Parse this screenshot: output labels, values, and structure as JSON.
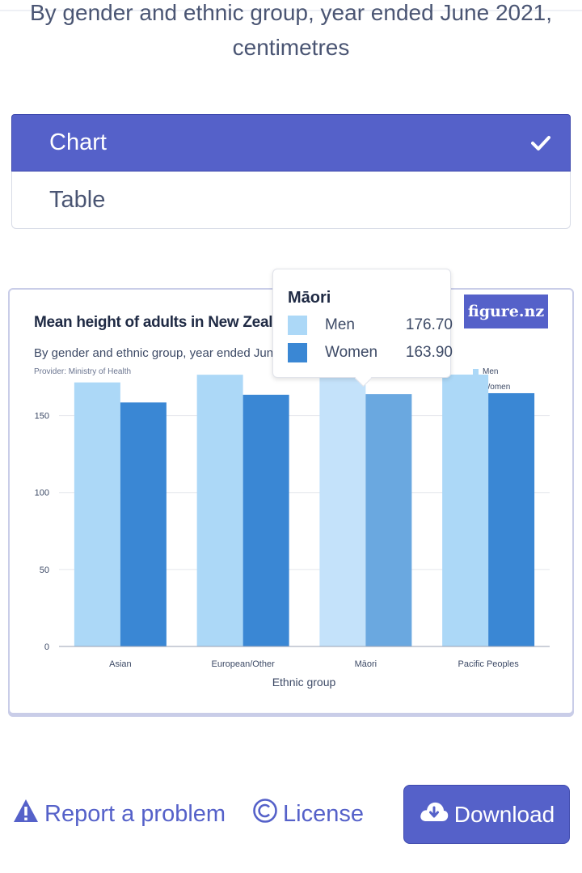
{
  "header": {
    "subtitle_line1": "By gender and ethnic group, year ended June 2021,",
    "subtitle_line2": "centimetres"
  },
  "view_toggle": {
    "options": [
      {
        "label": "Chart",
        "selected": true
      },
      {
        "label": "Table",
        "selected": false
      }
    ]
  },
  "chart_card": {
    "title": "Mean height of adults in New Zealand",
    "subtitle": "By gender and ethnic group, year ended June 20",
    "provider": "Provider: Ministry of Health",
    "logo": "figure.nz"
  },
  "tooltip": {
    "title": "Māori",
    "rows": [
      {
        "label": "Men",
        "value": "176.70"
      },
      {
        "label": "Women",
        "value": "163.90"
      }
    ]
  },
  "chart_data": {
    "type": "bar",
    "title": "Mean height of adults in New Zealand",
    "subtitle": "By gender and ethnic group, year ended June 2021, centimetres",
    "xlabel": "Ethnic group",
    "ylabel": "",
    "categories": [
      "Asian",
      "European/Other",
      "Māori",
      "Pacific Peoples"
    ],
    "series": [
      {
        "name": "Men",
        "values": [
          171.5,
          176.5,
          176.7,
          176.6
        ],
        "color": "#acd8f7"
      },
      {
        "name": "Women",
        "values": [
          158.5,
          163.5,
          163.9,
          164.5
        ],
        "color": "#3a87d4"
      }
    ],
    "yticks": [
      "0",
      "50",
      "100",
      "150"
    ],
    "ylim": [
      0,
      175
    ],
    "highlighted_category": "Māori",
    "grid": true,
    "legend_position": "top-right"
  },
  "footer": {
    "report_label": "Report a problem",
    "license_label": "License",
    "download_label": "Download"
  },
  "colors": {
    "accent": "#5561c9",
    "men": "#acd8f7",
    "women": "#3a87d4"
  },
  "icons": {
    "check": "check-icon",
    "warning": "warning-icon",
    "copyright": "copyright-icon",
    "download": "cloud-download-icon"
  }
}
